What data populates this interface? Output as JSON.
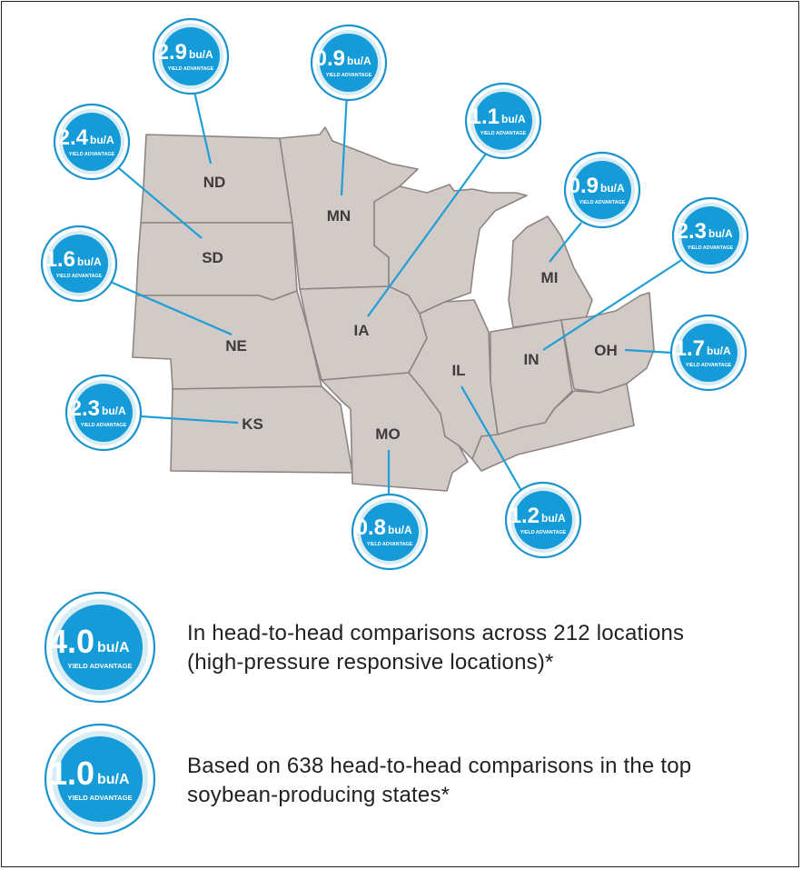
{
  "states": [
    {
      "id": "ND",
      "label": "ND",
      "value": "2.9",
      "unit": "bu/A",
      "sub": "YIELD ADVANTAGE"
    },
    {
      "id": "SD",
      "label": "SD",
      "value": "2.4",
      "unit": "bu/A",
      "sub": "YIELD ADVANTAGE"
    },
    {
      "id": "MN",
      "label": "MN",
      "value": "0.9",
      "unit": "bu/A",
      "sub": "YIELD ADVANTAGE"
    },
    {
      "id": "IA",
      "label": "IA",
      "value": "1.1",
      "unit": "bu/A",
      "sub": "YIELD ADVANTAGE"
    },
    {
      "id": "MI",
      "label": "MI",
      "value": "0.9",
      "unit": "bu/A",
      "sub": "YIELD ADVANTAGE"
    },
    {
      "id": "IN",
      "label": "IN",
      "value": "2.3",
      "unit": "bu/A",
      "sub": "YIELD ADVANTAGE"
    },
    {
      "id": "NE",
      "label": "NE",
      "value": "1.6",
      "unit": "bu/A",
      "sub": "YIELD ADVANTAGE"
    },
    {
      "id": "OH",
      "label": "OH",
      "value": "1.7",
      "unit": "bu/A",
      "sub": "YIELD ADVANTAGE"
    },
    {
      "id": "KS",
      "label": "KS",
      "value": "2.3",
      "unit": "bu/A",
      "sub": "YIELD ADVANTAGE"
    },
    {
      "id": "MO",
      "label": "MO",
      "value": "0.8",
      "unit": "bu/A",
      "sub": "YIELD ADVANTAGE"
    },
    {
      "id": "IL",
      "label": "IL",
      "value": "1.2",
      "unit": "bu/A",
      "sub": "YIELD ADVANTAGE"
    }
  ],
  "legend": [
    {
      "value": "4.0",
      "unit": "bu/A",
      "sub": "YIELD ADVANTAGE",
      "line1": "In head-to-head comparisons across 212 locations",
      "line2": "(high-pressure responsive locations)*"
    },
    {
      "value": "1.0",
      "unit": "bu/A",
      "sub": "YIELD ADVANTAGE",
      "line1": "Based on 638 head-to-head comparisons in the top",
      "line2": "soybean-producing states*"
    }
  ],
  "colors": {
    "badge_fill": "#159bd7",
    "leader": "#1f9fd6",
    "state_fill": "#d2cac6",
    "state_stroke": "#8c8582"
  }
}
